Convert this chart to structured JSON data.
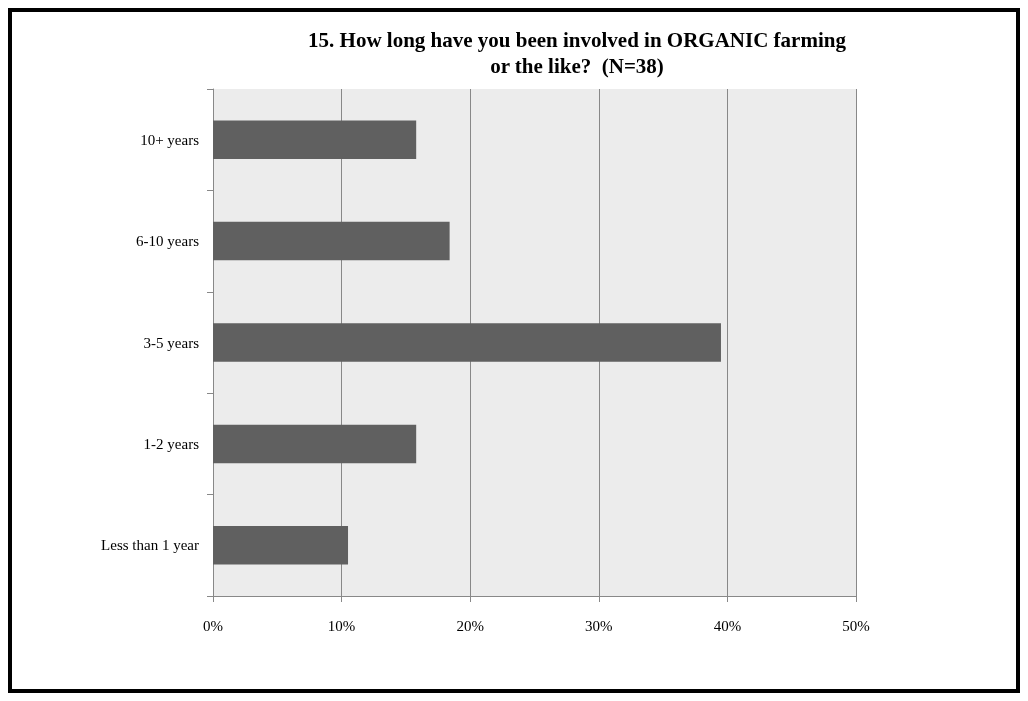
{
  "chart_data": {
    "type": "bar",
    "orientation": "horizontal",
    "title": "15. How long have you been involved in ORGANIC farming\nor the like?  (N=38)",
    "categories": [
      "10+ years",
      "6-10 years",
      "3-5 years",
      "1-2 years",
      "Less than 1 year"
    ],
    "values": [
      15.8,
      18.4,
      39.5,
      15.8,
      10.5
    ],
    "color": "#606060",
    "xlim": [
      0,
      50
    ],
    "xticks": [
      {
        "value": 0,
        "label": "0%"
      },
      {
        "value": 10,
        "label": "10%"
      },
      {
        "value": 20,
        "label": "20%"
      },
      {
        "value": 30,
        "label": "30%"
      },
      {
        "value": 40,
        "label": "40%"
      },
      {
        "value": 50,
        "label": "50%"
      }
    ],
    "grid": "x"
  }
}
